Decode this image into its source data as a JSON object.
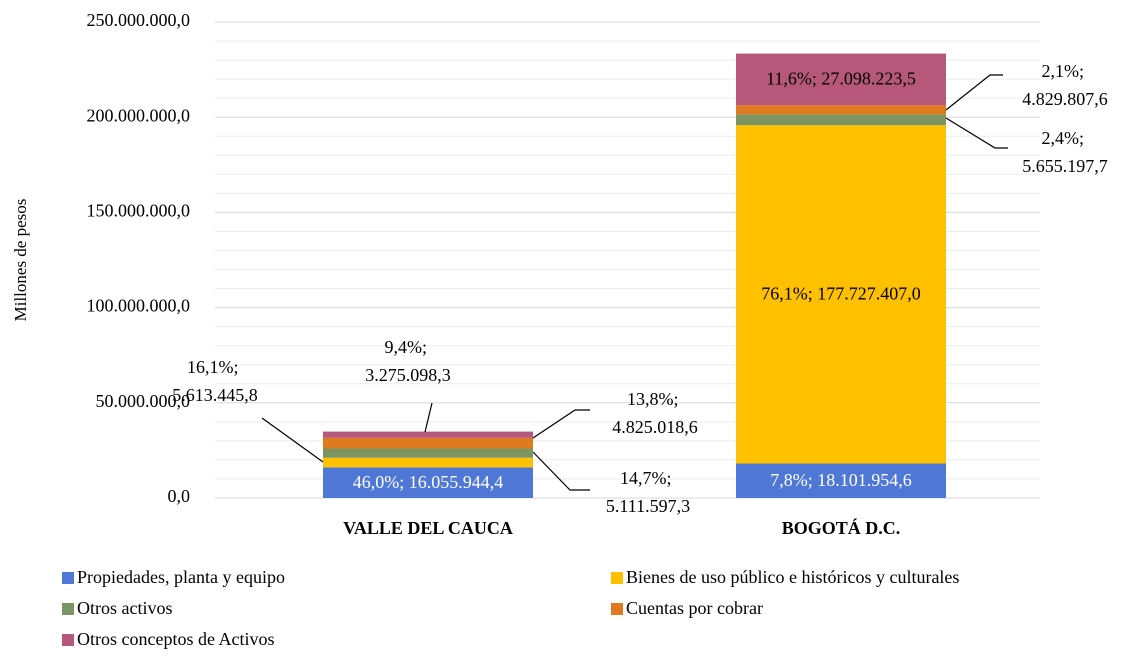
{
  "chart_data": {
    "type": "stacked_bar",
    "y_label": "Millones  de pesos",
    "categories": [
      "VALLE DEL CAUCA",
      "BOGOTÁ D.C."
    ],
    "series": [
      {
        "name": "Propiedades, planta y equipo",
        "color": "#4f78d6",
        "values": [
          16055944.4,
          18101954.6
        ],
        "value_labels": [
          "46,0%; 16.055.944,4",
          "7,8%; 18.101.954,6"
        ]
      },
      {
        "name": "Bienes de uso público e históricos y culturales",
        "color": "#ffc000",
        "values": [
          5111597.3,
          177727407.0
        ],
        "value_labels": [
          "14,7%; 5.111.597,3",
          "76,1%; 177.727.407,0"
        ]
      },
      {
        "name": "Otros activos",
        "color": "#7a9562",
        "values": [
          4825018.6,
          5655197.7
        ],
        "value_labels": [
          "13,8%; 4.825.018,6",
          "2,4%; 5.655.197,7"
        ]
      },
      {
        "name": "Cuentas por cobrar",
        "color": "#e07a1e",
        "values": [
          5613445.8,
          4829807.6
        ],
        "value_labels": [
          "16,1%; 5.613.445,8",
          "2,1%; 4.829.807,6"
        ]
      },
      {
        "name": "Otros conceptos de Activos",
        "color": "#b5587a",
        "values": [
          3275098.3,
          27098223.5
        ],
        "value_labels": [
          "9,4%; 3.275.098,3",
          "11,6%; 27.098.223,5"
        ]
      }
    ],
    "ylim": [
      0,
      250000000
    ],
    "yticks": [
      {
        "value": 0,
        "label": "0,0"
      },
      {
        "value": 50000000,
        "label": "50.000.000,0"
      },
      {
        "value": 100000000,
        "label": "100.000.000,0"
      },
      {
        "value": 150000000,
        "label": "150.000.000,0"
      },
      {
        "value": 200000000,
        "label": "200.000.000,0"
      },
      {
        "value": 250000000,
        "label": "250.000.000,0"
      }
    ],
    "y_minor_ticks": [
      10000000,
      20000000,
      30000000,
      40000000,
      60000000,
      70000000,
      80000000,
      90000000,
      110000000,
      120000000,
      130000000,
      140000000,
      160000000,
      170000000,
      180000000,
      190000000,
      210000000,
      220000000,
      230000000,
      240000000
    ],
    "grid": true,
    "legend": "bottom"
  }
}
